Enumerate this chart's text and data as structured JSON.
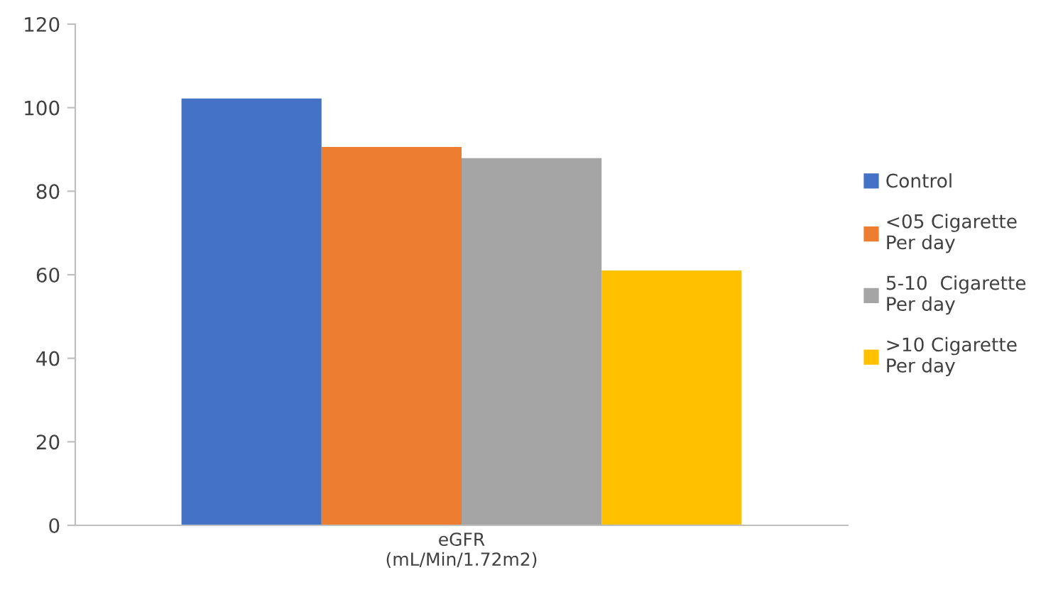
{
  "chart_data": {
    "type": "bar",
    "categories": [
      "eGFR\n(mL/Min/1.72m2)"
    ],
    "series": [
      {
        "name": "Control",
        "color": "#4472c4",
        "values": [
          102.2
        ]
      },
      {
        "name": "<05 Cigarette\nPer day",
        "color": "#ed7d31",
        "values": [
          90.6
        ]
      },
      {
        "name": "5-10  Cigarette\nPer day",
        "color": "#a5a5a5",
        "values": [
          87.9
        ]
      },
      {
        "name": ">10 Cigarette\nPer day",
        "color": "#ffc000",
        "values": [
          61
        ]
      }
    ],
    "ylim": [
      0,
      120
    ],
    "yticks": [
      0,
      20,
      40,
      60,
      80,
      100,
      120
    ],
    "grid": false,
    "legend": "right"
  }
}
